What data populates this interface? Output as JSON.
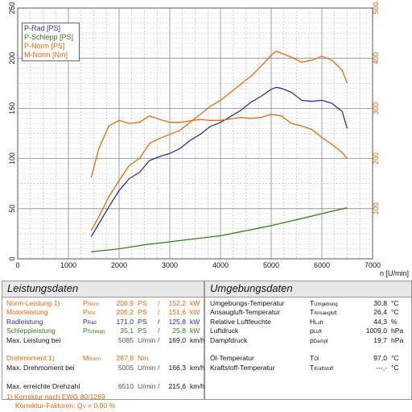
{
  "chart_data": {
    "type": "line",
    "xlabel": "n [U/min]",
    "xlim": [
      0,
      7000
    ],
    "x_ticks": [
      "0",
      "1000",
      "2000",
      "3000",
      "4000",
      "5000",
      "6000",
      "7000"
    ],
    "ylim_left": [
      0,
      250
    ],
    "y_left_ticks": [
      "0",
      "50",
      "100",
      "150",
      "200",
      "250"
    ],
    "ylim_right": [
      0,
      500
    ],
    "y_right_ticks": [
      "100",
      "200",
      "300",
      "400",
      "500"
    ],
    "grid": true,
    "legend_position": "top-left",
    "series": [
      {
        "name": "P-Rad [PS]",
        "axis": "left",
        "color": "#2e2e96",
        "x": [
          1450,
          1600,
          1800,
          2000,
          2200,
          2400,
          2600,
          2800,
          3000,
          3200,
          3400,
          3600,
          3800,
          4000,
          4200,
          4400,
          4600,
          4800,
          5000,
          5100,
          5200,
          5400,
          5600,
          5800,
          6000,
          6200,
          6400,
          6500
        ],
        "y": [
          22,
          35,
          52,
          68,
          80,
          86,
          98,
          102,
          105,
          110,
          118,
          124,
          132,
          136,
          142,
          148,
          156,
          162,
          169,
          171,
          170,
          166,
          158,
          157,
          158,
          155,
          147,
          130
        ]
      },
      {
        "name": "P-Schlepp [PS]",
        "axis": "left",
        "color": "#3a7a1e",
        "x": [
          1450,
          2000,
          2500,
          3000,
          3500,
          4000,
          4500,
          5000,
          5500,
          6000,
          6500
        ],
        "y": [
          7,
          10,
          14,
          17,
          20,
          23,
          28,
          33,
          39,
          45,
          51
        ]
      },
      {
        "name": "P-Norm [PS]",
        "axis": "left",
        "color": "#e46a10",
        "x": [
          1450,
          1600,
          1800,
          2000,
          2200,
          2400,
          2600,
          2800,
          3000,
          3200,
          3400,
          3600,
          3800,
          4000,
          4200,
          4400,
          4600,
          4800,
          5000,
          5100,
          5200,
          5400,
          5600,
          5800,
          6000,
          6200,
          6400,
          6500
        ],
        "y": [
          28,
          42,
          62,
          78,
          93,
          100,
          115,
          120,
          124,
          128,
          136,
          144,
          152,
          158,
          166,
          174,
          182,
          192,
          203,
          207,
          205,
          201,
          196,
          198,
          202,
          198,
          188,
          175
        ]
      },
      {
        "name": "M-Norm [Nm]",
        "axis": "right",
        "color": "#e46a10",
        "x": [
          1450,
          1600,
          1800,
          2000,
          2200,
          2400,
          2600,
          2800,
          3000,
          3200,
          3400,
          3600,
          3800,
          4000,
          4200,
          4400,
          4600,
          4800,
          5000,
          5200,
          5400,
          5600,
          5800,
          6000,
          6200,
          6400,
          6500
        ],
        "y": [
          162,
          220,
          265,
          276,
          270,
          272,
          285,
          278,
          272,
          272,
          275,
          278,
          276,
          276,
          279,
          282,
          280,
          282,
          288,
          285,
          270,
          265,
          258,
          242,
          228,
          212,
          200
        ]
      }
    ]
  },
  "legend": {
    "items": [
      "P-Rad [PS]",
      "P-Schlepp [PS]",
      "P-Norm [PS]",
      "M-Norm [Nm]"
    ]
  },
  "leistung": {
    "title": "Leistungsdaten",
    "rows": [
      {
        "label": "Norm-Leistung 1)",
        "sym": "P",
        "sub": "Norm",
        "v1": "206,9",
        "u1": "PS",
        "sep": "/",
        "v2": "152,2",
        "u2": "kW",
        "cls": "c-norm"
      },
      {
        "label": "Motorleistung",
        "sym": "P",
        "sub": "Mot",
        "v1": "206,2",
        "u1": "PS",
        "sep": "/",
        "v2": "151,6",
        "u2": "kW",
        "cls": "c-norm"
      },
      {
        "label": "Radleistung",
        "sym": "P",
        "sub": "Rad",
        "v1": "171,0",
        "u1": "PS",
        "sep": "/",
        "v2": "125,8",
        "u2": "kW",
        "cls": "c-rad"
      },
      {
        "label": "Schleppleistung",
        "sym": "P",
        "sub": "Schlepp",
        "v1": "35,1",
        "u1": "PS",
        "sep": "/",
        "v2": "25,8",
        "u2": "kW",
        "cls": "c-sch"
      },
      {
        "label": "Max. Leistung bei",
        "sym": "",
        "sub": "",
        "v1": "5085",
        "u1": "U/min",
        "sep": "/",
        "v2": "169,0",
        "u2": "km/h",
        "cls": "c-dark"
      },
      {
        "label": "",
        "sym": "",
        "sub": "",
        "v1": "",
        "u1": "",
        "sep": "",
        "v2": "",
        "u2": "",
        "cls": "c-dark"
      },
      {
        "label": "Drehmoment 1)",
        "sym": "M",
        "sub": "Norm",
        "v1": "287,8",
        "u1": "Nm",
        "sep": "",
        "v2": "",
        "u2": "",
        "cls": "c-norm"
      },
      {
        "label": "Max. Drehmoment bei",
        "sym": "",
        "sub": "",
        "v1": "5005",
        "u1": "U/min",
        "sep": "/",
        "v2": "166,3",
        "u2": "km/h",
        "cls": "c-dark"
      },
      {
        "label": "",
        "sym": "",
        "sub": "",
        "v1": "",
        "u1": "",
        "sep": "",
        "v2": "",
        "u2": "",
        "cls": "c-dark"
      },
      {
        "label": "Max. erreichte Drehzahl",
        "sym": "",
        "sub": "",
        "v1": "6510",
        "u1": "U/min",
        "sep": "/",
        "v2": "215,6",
        "u2": "km/h",
        "cls": "c-dark"
      }
    ],
    "footnote1": "1) Korrektur nach EWG 80/1269",
    "footnote2_prefix": "Korrektur-Faktoren: Q",
    "footnote2_sub": "V",
    "footnote2_value": " =   0,00 %"
  },
  "umgebung": {
    "title": "Umgebungsdaten",
    "rows": [
      {
        "label": "Umgebungs-Temperatur",
        "sym": "T",
        "sub": "Umgebung",
        "val": "30,8",
        "unit": "°C"
      },
      {
        "label": "Ansaugluft-Temperatur",
        "sym": "T",
        "sub": "Ansaugluft",
        "val": "26,4",
        "unit": "°C"
      },
      {
        "label": "Relative Luftfeuchte",
        "sym": "H",
        "sub": "Luft",
        "val": "44,3",
        "unit": "%"
      },
      {
        "label": "Luftdruck",
        "sym": "p",
        "sub": "Luft",
        "val": "1009,0",
        "unit": "hPa"
      },
      {
        "label": "Dampfdruck",
        "sym": "p",
        "sub": "Dampf",
        "val": "19,7",
        "unit": "hPa"
      },
      {
        "label": "",
        "sym": "",
        "sub": "",
        "val": "",
        "unit": ""
      },
      {
        "label": "Öl-Temperatur",
        "sym": "T",
        "sub": "Öl",
        "val": "97,0",
        "unit": "°C"
      },
      {
        "label": "Kraftstoff-Temperatur",
        "sym": "T",
        "sub": "Kraftstoff",
        "val": "---,-",
        "unit": "°C"
      }
    ]
  }
}
